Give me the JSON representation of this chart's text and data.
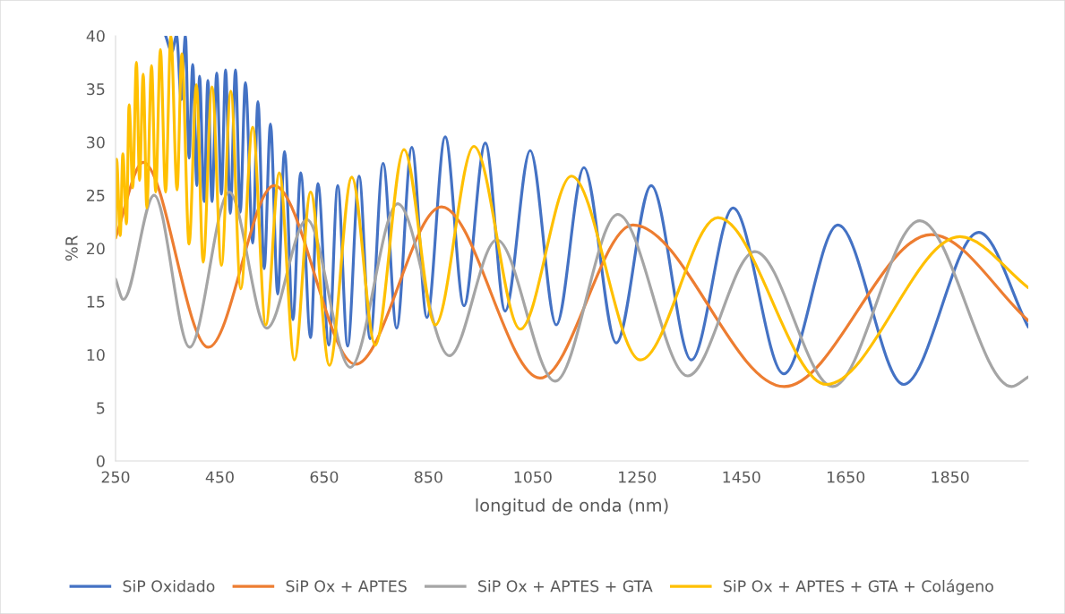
{
  "chart_data": {
    "type": "line",
    "xlabel": "longitud de onda (nm)",
    "ylabel": "%R",
    "xlim": [
      250,
      2000
    ],
    "xticks": [
      250,
      450,
      650,
      850,
      1050,
      1250,
      1450,
      1650,
      1850
    ],
    "ylim": [
      0,
      40
    ],
    "yticks": [
      0,
      5,
      10,
      15,
      20,
      25,
      30,
      35,
      40
    ],
    "grid": false,
    "legend": "bottom",
    "marker": "none",
    "line_style": "solid",
    "series": [
      {
        "name": "SiP Oxidado",
        "color": "#4472c4",
        "x": [
          346,
          358,
          367,
          376,
          384,
          391,
          398,
          406,
          411,
          420,
          427,
          435,
          444,
          453,
          461,
          470,
          480,
          489,
          499,
          513,
          523,
          535,
          547,
          561,
          574,
          590,
          605,
          624,
          638,
          659,
          676,
          695,
          717,
          738,
          763,
          789,
          818,
          847,
          882,
          918,
          959,
          997,
          1045,
          1095,
          1148,
          1210,
          1277,
          1354,
          1434,
          1531,
          1635,
          1761,
          1905,
          2000
        ],
        "values": [
          40,
          38.5,
          40,
          34,
          40,
          28.5,
          37.3,
          25.9,
          36.2,
          24.4,
          35.8,
          24.4,
          36.5,
          25.1,
          36.8,
          23.3,
          36.8,
          23.4,
          35.6,
          20.5,
          33.8,
          18.1,
          31.7,
          15.7,
          29.1,
          13.3,
          27.1,
          11.6,
          26.1,
          10.9,
          25.9,
          10.8,
          26.8,
          11.5,
          28.0,
          12.5,
          29.5,
          13.5,
          30.5,
          14.6,
          29.9,
          14.1,
          29.2,
          12.8,
          27.6,
          11.1,
          25.9,
          9.5,
          23.8,
          8.2,
          22.2,
          7.2,
          21.5,
          12.6
        ]
      },
      {
        "name": "SiP Ox + APTES",
        "color": "#ed7d31",
        "x": [
          250,
          303,
          428,
          554,
          710,
          875,
          1064,
          1242,
          1532,
          1814,
          2000
        ],
        "values": [
          21.0,
          28.1,
          10.7,
          25.9,
          9.1,
          23.9,
          7.8,
          22.2,
          7.0,
          21.3,
          13.2
        ]
      },
      {
        "name": "SiP Ox + APTES + GTA",
        "color": "#a5a5a5",
        "x": [
          250,
          265,
          324,
          392,
          468,
          540,
          617,
          700,
          791,
          890,
          981,
          1093,
          1213,
          1347,
          1476,
          1625,
          1792,
          1968,
          2000
        ],
        "values": [
          17.1,
          15.2,
          25.0,
          10.7,
          25.3,
          12.5,
          22.7,
          8.8,
          24.2,
          9.9,
          20.8,
          7.5,
          23.2,
          8.0,
          19.7,
          7.0,
          22.6,
          7.0,
          7.9
        ]
      },
      {
        "name": "SiP Ox + APTES + GTA + Colágeno",
        "color": "#ffc000",
        "x": [
          250,
          252,
          259,
          264,
          271,
          276,
          283,
          290,
          296,
          303,
          310,
          319,
          327,
          336,
          346,
          356,
          368,
          377,
          391,
          405,
          418,
          435,
          453,
          471,
          490,
          513,
          538,
          564,
          593,
          624,
          660,
          703,
          748,
          803,
          863,
          937,
          1026,
          1124,
          1256,
          1405,
          1613,
          1869,
          2000
        ],
        "values": [
          21.0,
          28.4,
          21.2,
          28.9,
          22.3,
          33.5,
          25.7,
          37.5,
          26.4,
          36.4,
          23.8,
          37.2,
          25.3,
          38.7,
          25.3,
          40,
          25.5,
          38.3,
          20.4,
          35.4,
          18.7,
          35.2,
          18.4,
          34.8,
          16.2,
          31.4,
          12.8,
          27.1,
          9.5,
          25.3,
          9.0,
          26.7,
          10.9,
          29.3,
          12.8,
          29.6,
          12.4,
          26.8,
          9.5,
          22.9,
          7.2,
          21.1,
          16.3
        ]
      }
    ]
  }
}
